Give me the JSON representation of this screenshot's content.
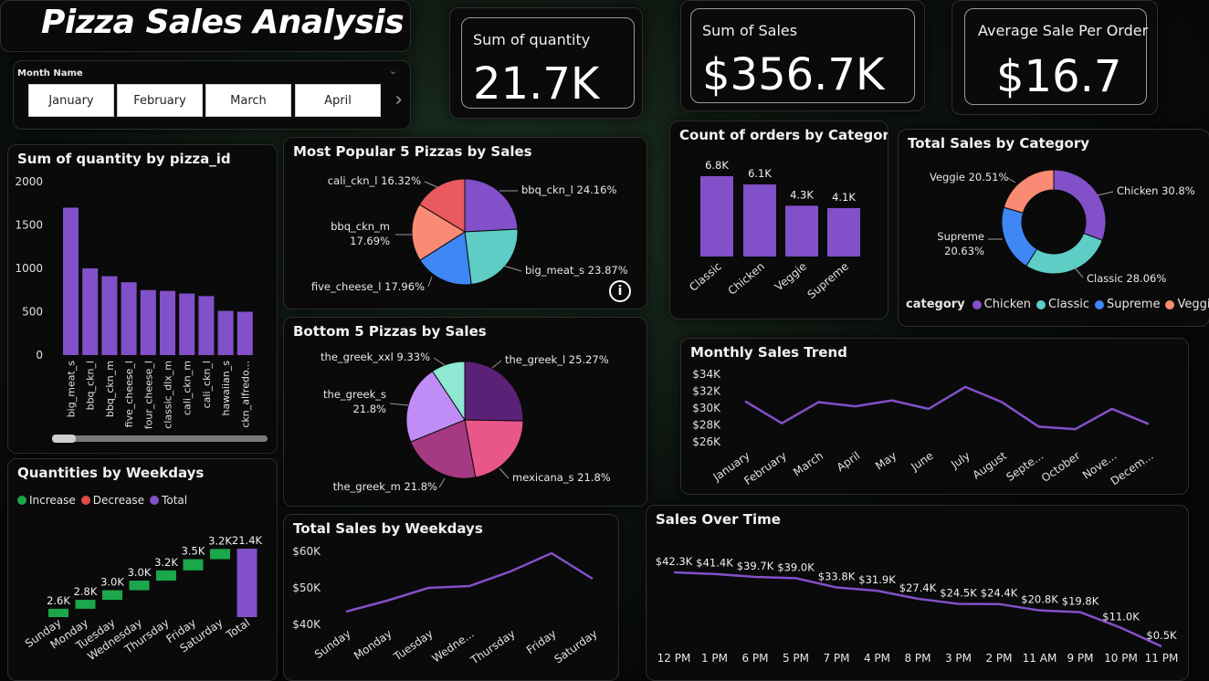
{
  "title": "Pizza Sales Analysis",
  "slicer": {
    "label": "Month Name",
    "months": [
      "January",
      "February",
      "March",
      "April"
    ]
  },
  "kpis": [
    {
      "label": "Sum of quantity",
      "value": "21.7K"
    },
    {
      "label": "Sum of Sales",
      "value": "$356.7K"
    },
    {
      "label": "Average Sale Per Order",
      "value": "$16.7"
    }
  ],
  "colors": {
    "purple": "#8250c8",
    "teal": "#5dcdc6",
    "blue": "#3f87f5",
    "salmon": "#f98a73",
    "green": "#1aa84a",
    "red": "#e04b4b"
  },
  "chart_data": [
    {
      "id": "qty_by_pizza",
      "type": "bar",
      "title": "Sum of quantity by pizza_id",
      "categories": [
        "big_meat_s",
        "bbq_ckn_l",
        "bbq_ckn_m",
        "five_cheese_l",
        "four_cheese_l",
        "classic_dlx_m",
        "cali_ckn_m",
        "cali_ckn_l",
        "hawaiian_s",
        "ckn_alfredo..."
      ],
      "values": [
        1700,
        1000,
        910,
        840,
        750,
        740,
        710,
        680,
        510,
        500
      ],
      "ylim": [
        0,
        2000
      ],
      "yticks": [
        0,
        500,
        1000,
        1500,
        2000
      ]
    },
    {
      "id": "top5",
      "type": "pie",
      "title": "Most Popular 5 Pizzas by Sales",
      "slices": [
        {
          "name": "bbq_ckn_l",
          "label": "bbq_ckn_l 24.16%",
          "value": 24.16,
          "color": "#8250c8"
        },
        {
          "name": "big_meat_s",
          "label": "big_meat_s 23.87%",
          "value": 23.87,
          "color": "#5dcdc6"
        },
        {
          "name": "five_cheese_l",
          "label": "five_cheese_l 17.96%",
          "value": 17.96,
          "color": "#3f87f5"
        },
        {
          "name": "bbq_ckn_m",
          "label": "bbq_ckn_m",
          "label2": "17.69%",
          "value": 17.69,
          "color": "#f98a73"
        },
        {
          "name": "cali_ckn_l",
          "label": "cali_ckn_l 16.32%",
          "value": 16.32,
          "color": "#e85a60"
        }
      ]
    },
    {
      "id": "bottom5",
      "type": "pie",
      "title": "Bottom 5 Pizzas by Sales",
      "slices": [
        {
          "name": "the_greek_l",
          "label": "the_greek_l 25.27%",
          "value": 25.27,
          "color": "#5b2176"
        },
        {
          "name": "mexicana_s",
          "label": "mexicana_s 21.8%",
          "value": 21.8,
          "color": "#e8568a"
        },
        {
          "name": "the_greek_m",
          "label": "the_greek_m 21.8%",
          "value": 21.8,
          "color": "#a63a82"
        },
        {
          "name": "the_greek_s",
          "label": "the_greek_s",
          "label2": "21.8%",
          "value": 21.8,
          "color": "#c08cf5"
        },
        {
          "name": "the_greek_xxl",
          "label": "the_greek_xxl 9.33%",
          "value": 9.33,
          "color": "#8ee8d2"
        }
      ]
    },
    {
      "id": "orders_by_cat",
      "type": "bar",
      "title": "Count of orders by Category",
      "categories": [
        "Classic",
        "Chicken",
        "Veggie",
        "Supreme"
      ],
      "values": [
        6.8,
        6.1,
        4.3,
        4.1
      ],
      "data_labels": [
        "6.8K",
        "6.1K",
        "4.3K",
        "4.1K"
      ]
    },
    {
      "id": "sales_by_cat",
      "type": "pie",
      "title": "Total Sales by Category",
      "legend_title": "category",
      "slices": [
        {
          "name": "Chicken",
          "label": "Chicken 30.8%",
          "value": 30.8,
          "color": "#8250c8"
        },
        {
          "name": "Classic",
          "label": "Classic 28.06%",
          "value": 28.06,
          "color": "#5dcdc6"
        },
        {
          "name": "Supreme",
          "label": "Supreme",
          "label2": "20.63%",
          "value": 20.63,
          "color": "#3f87f5"
        },
        {
          "name": "Veggie",
          "label": "Veggie 20.51%",
          "value": 20.51,
          "color": "#f98a73"
        }
      ]
    },
    {
      "id": "monthly_trend",
      "type": "line",
      "title": "Monthly Sales Trend",
      "categories": [
        "January",
        "February",
        "March",
        "April",
        "May",
        "June",
        "July",
        "August",
        "Septe...",
        "October",
        "Nove...",
        "Decem..."
      ],
      "values": [
        30800,
        28200,
        30700,
        30200,
        30900,
        29900,
        32500,
        30700,
        27800,
        27500,
        29900,
        28100
      ],
      "ylim": [
        26000,
        34000
      ],
      "yticks": [
        26000,
        28000,
        30000,
        32000,
        34000
      ],
      "ytick_labels": [
        "$26K",
        "$28K",
        "$30K",
        "$32K",
        "$34K"
      ]
    },
    {
      "id": "qty_weekdays",
      "type": "waterfall",
      "title": "Quantities by Weekdays",
      "legend": [
        "Increase",
        "Decrease",
        "Total"
      ],
      "categories": [
        "Sunday",
        "Monday",
        "Tuesday",
        "Wednesday",
        "Thursday",
        "Friday",
        "Saturday",
        "Total"
      ],
      "values": [
        2.6,
        2.8,
        3.0,
        3.0,
        3.2,
        3.5,
        3.2,
        21.4
      ],
      "data_labels": [
        "2.6K",
        "2.8K",
        "3.0K",
        "3.0K",
        "3.2K",
        "3.5K",
        "3.2K",
        "21.4K"
      ]
    },
    {
      "id": "sales_weekdays",
      "type": "line",
      "title": "Total Sales by Weekdays",
      "categories": [
        "Sunday",
        "Monday",
        "Tuesday",
        "Wedne...",
        "Thursday",
        "Friday",
        "Saturday"
      ],
      "values": [
        43500,
        46500,
        50000,
        50500,
        54500,
        59500,
        52500
      ],
      "ylim": [
        40000,
        60000
      ],
      "yticks": [
        40000,
        50000,
        60000
      ],
      "ytick_labels": [
        "$40K",
        "$50K",
        "$60K"
      ]
    },
    {
      "id": "sales_over_time",
      "type": "line",
      "title": "Sales Over Time",
      "categories": [
        "12 PM",
        "1 PM",
        "6 PM",
        "5 PM",
        "7 PM",
        "4 PM",
        "8 PM",
        "3 PM",
        "2 PM",
        "11 AM",
        "9 PM",
        "10 PM",
        "11 PM"
      ],
      "values": [
        42.3,
        41.4,
        39.7,
        39.0,
        33.8,
        31.9,
        27.4,
        24.5,
        24.4,
        20.8,
        19.8,
        11.0,
        0.5
      ],
      "data_labels": [
        "$42.3K",
        "$41.4K",
        "$39.7K",
        "$39.0K",
        "$33.8K",
        "$31.9K",
        "$27.4K",
        "$24.5K",
        "$24.4K",
        "$20.8K",
        "$19.8K",
        "$11.0K",
        "$0.5K"
      ]
    }
  ]
}
